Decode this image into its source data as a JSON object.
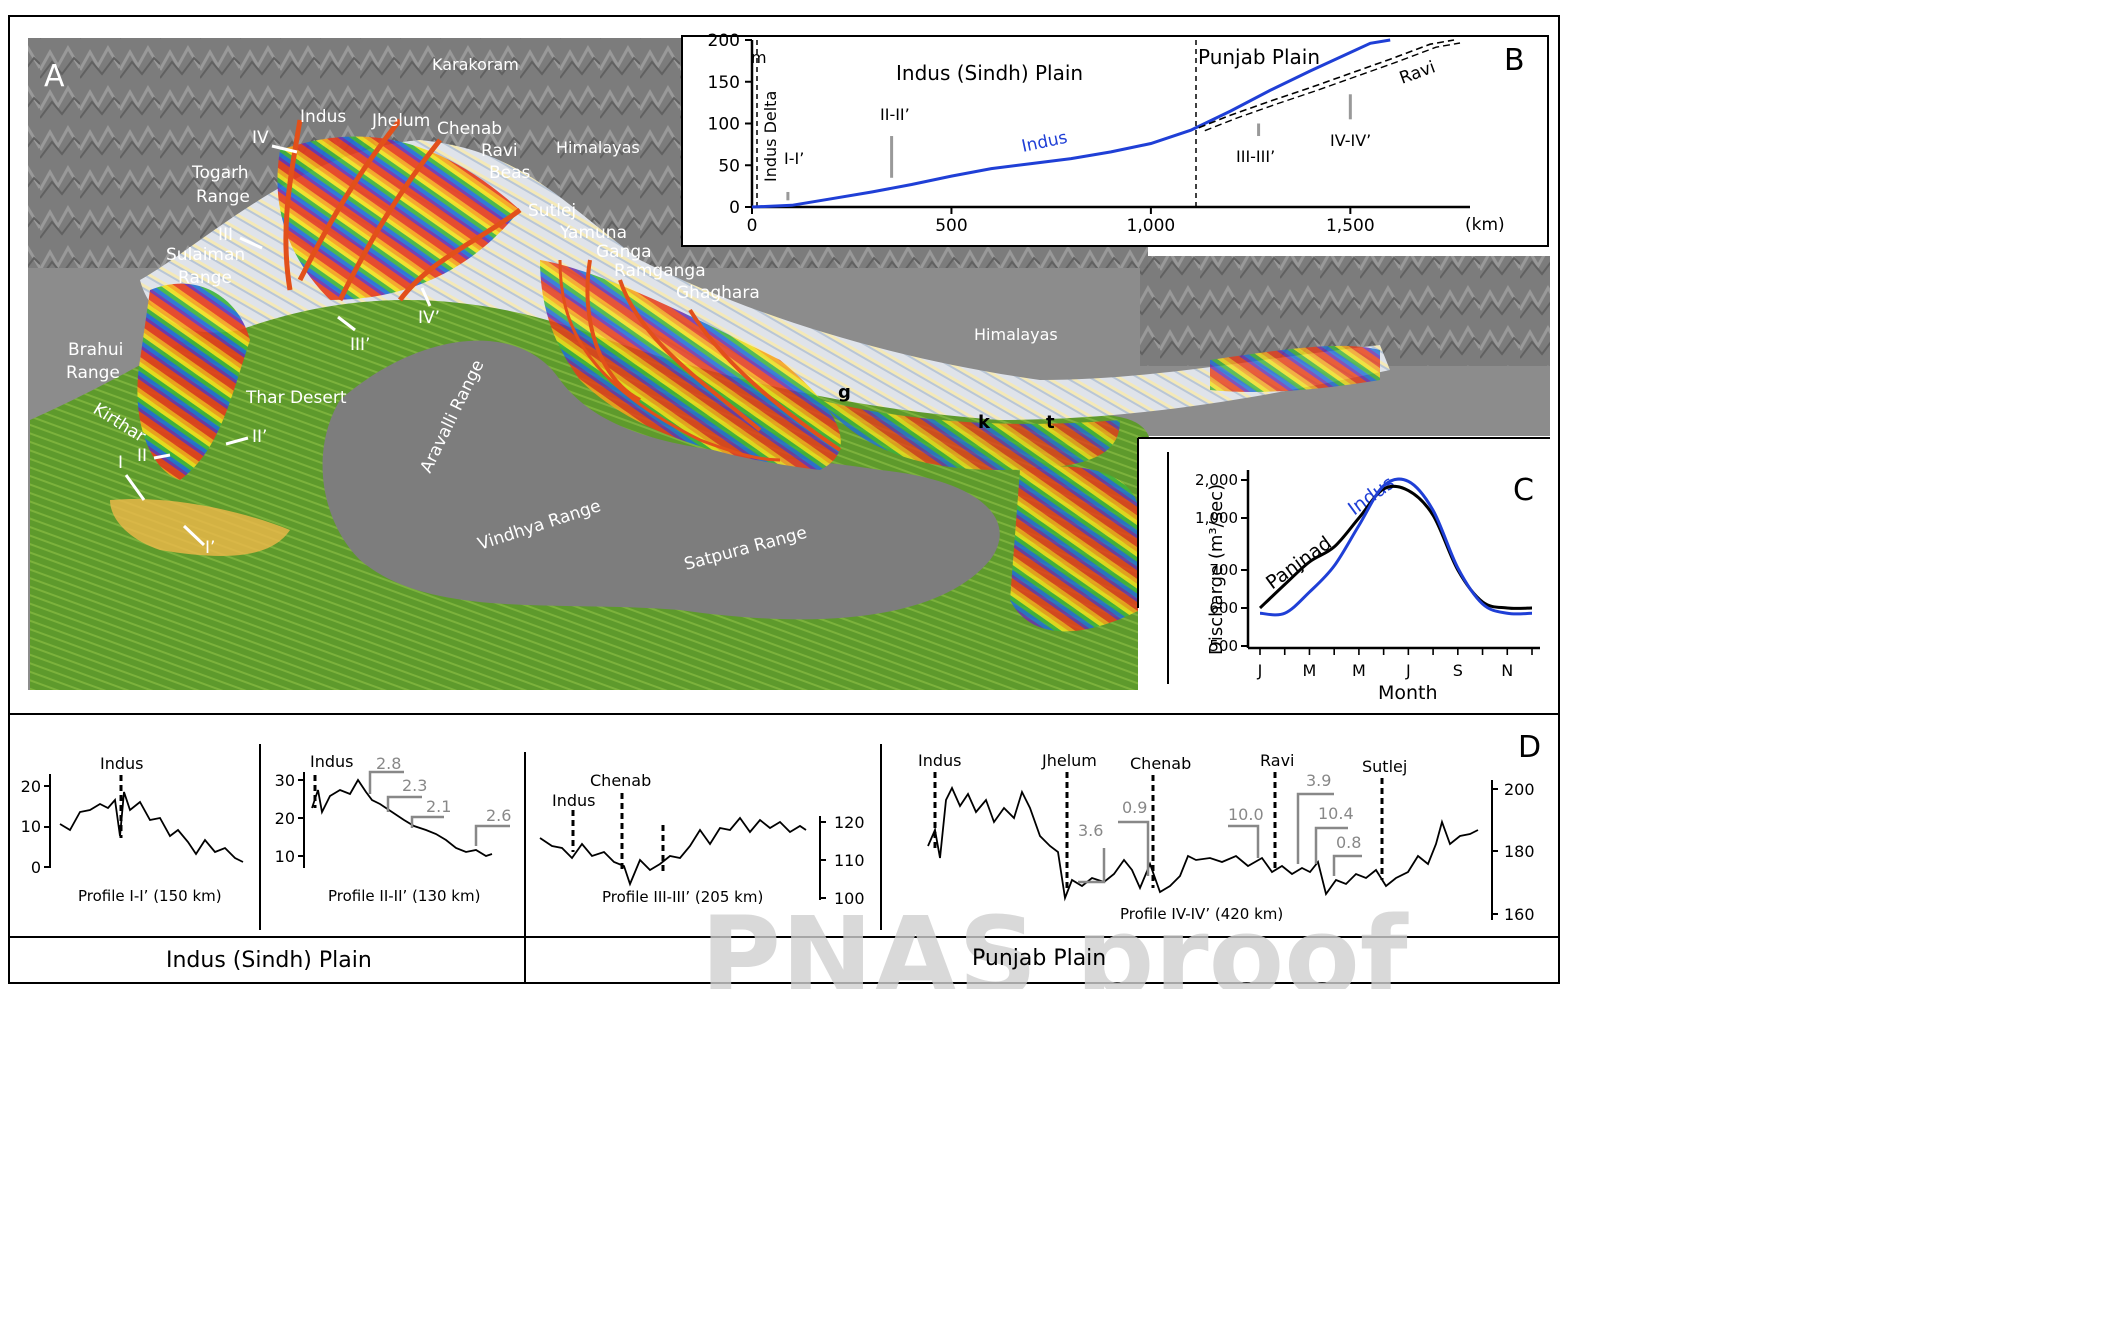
{
  "panel_a": {
    "letter": "A",
    "labels": {
      "karakoram": "Karakoram",
      "himalayas_nw": "Himalayas",
      "himalayas_e": "Himalayas",
      "indus": "Indus",
      "jhelum": "Jhelum",
      "chenab": "Chenab",
      "ravi": "Ravi",
      "beas": "Beas",
      "sutlej": "Sutlej",
      "yamuna": "Yamuna",
      "ganga": "Ganga",
      "ramganga": "Ramganga",
      "ghaghara": "Ghaghara",
      "togarh_1": "Togarh",
      "togarh_2": "Range",
      "sulaiman_1": "Sulaiman",
      "sulaiman_2": "Range",
      "brahui_1": "Brahui",
      "brahui_2": "Range",
      "kirthar": "Kirthar",
      "thar": "Thar Desert",
      "aravalli": "Aravalli Range",
      "vindhya": "Vindhya Range",
      "satpura": "Satpura Range",
      "g": "g",
      "k": "k",
      "t": "t"
    },
    "profile_marks": {
      "iv": "IV",
      "iii": "III",
      "ii": "II",
      "i": "I",
      "iv_p": "IV’",
      "iii_p": "III’",
      "ii_p": "II’",
      "i_p": "I’"
    }
  },
  "panel_b": {
    "letter": "B",
    "y_ticks": [
      "200",
      "150",
      "100",
      "50",
      "0"
    ],
    "y_unit": "m",
    "x_ticks": [
      "0",
      "500",
      "1,000",
      "1,500"
    ],
    "x_unit": "(km)",
    "region_1": "Indus (Sindh) Plain",
    "region_2": "Punjab Plain",
    "delta": "Indus Delta",
    "markers": [
      "I-I’",
      "II-II’",
      "III-III’",
      "IV-IV’"
    ],
    "series_indus": "Indus",
    "series_ravi": "Ravi",
    "chart_data": {
      "type": "line",
      "xlim": [
        0,
        1800
      ],
      "ylim": [
        0,
        200
      ],
      "series": [
        {
          "name": "Indus",
          "color": "#1f3fd6",
          "x": [
            0,
            100,
            200,
            300,
            400,
            500,
            600,
            700,
            800,
            900,
            1000,
            1100,
            1200,
            1300,
            1400,
            1500,
            1550,
            1600
          ],
          "y": [
            0,
            2,
            10,
            18,
            27,
            37,
            46,
            52,
            58,
            66,
            76,
            92,
            115,
            140,
            163,
            185,
            196,
            205
          ]
        },
        {
          "name": "Ravi",
          "color": "#000000",
          "x": [
            1120,
            1200,
            1300,
            1400,
            1500,
            1600,
            1700,
            1760
          ],
          "y": [
            95,
            110,
            127,
            143,
            160,
            177,
            195,
            205
          ]
        }
      ]
    }
  },
  "panel_c": {
    "letter": "C",
    "y_label": "Discharge (m³/sec)",
    "y_ticks": [
      "2,000",
      "1,000",
      "700",
      "600",
      "500"
    ],
    "x_ticks": [
      "J",
      "M",
      "M",
      "J",
      "S",
      "N"
    ],
    "x_label": "Month",
    "series_panjnad": "Panjnad",
    "series_indus": "Indus",
    "chart_data": {
      "type": "line",
      "y_scale": "log",
      "ylim": [
        500,
        2000
      ],
      "x": [
        1,
        2,
        3,
        4,
        5,
        6,
        7,
        8,
        9,
        10,
        11,
        12
      ],
      "series": [
        {
          "name": "Panjnad",
          "color": "#000000",
          "values": [
            600,
            660,
            740,
            820,
            1000,
            1700,
            1650,
            1050,
            700,
            615,
            600,
            600
          ]
        },
        {
          "name": "Indus",
          "color": "#1f3fd6",
          "values": [
            585,
            585,
            640,
            720,
            950,
            1800,
            1950,
            1150,
            710,
            610,
            585,
            585
          ]
        }
      ]
    }
  },
  "panel_d": {
    "letter": "D",
    "p1": {
      "river": "Indus",
      "caption": "Profile I-I’ (150 km)",
      "y_ticks": [
        "20",
        "10",
        "0"
      ]
    },
    "p2": {
      "river": "Indus",
      "caption": "Profile II-II’ (130 km)",
      "y_ticks": [
        "30",
        "20",
        "10"
      ],
      "steps": [
        "2.8",
        "2.3",
        "2.1",
        "2.6"
      ]
    },
    "p3": {
      "river_1": "Indus",
      "river_2": "Chenab",
      "caption": "Profile III-III’ (205 km)",
      "y_ticks": [
        "120",
        "110",
        "100"
      ]
    },
    "p4": {
      "rivers": [
        "Indus",
        "Jhelum",
        "Chenab",
        "Ravi",
        "Sutlej"
      ],
      "caption": "Profile IV-IV’ (420 km)",
      "y_ticks": [
        "200",
        "180",
        "160"
      ],
      "steps": [
        "3.6",
        "0.9",
        "10.0",
        "3.9",
        "10.4",
        "0.8"
      ]
    },
    "footer_left": "Indus (Sindh) Plain",
    "footer_right": "Punjab Plain"
  },
  "watermark": "PNAS proof"
}
